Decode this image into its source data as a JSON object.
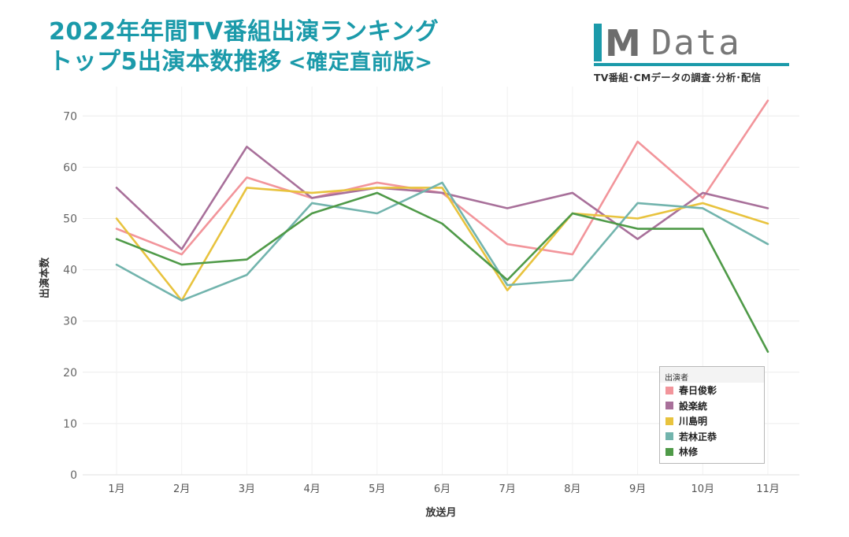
{
  "title": {
    "line1": "2022年年間TV番組出演ランキング",
    "line2": "トップ5出演本数推移",
    "line2_suffix": "<確定直前版>"
  },
  "logo": {
    "letters": "M",
    "word": "Data",
    "tagline": "TV番組･CMデータの調査･分析･配信",
    "accent_color": "#1b9aaa"
  },
  "chart_data": {
    "type": "line",
    "xlabel": "放送月",
    "ylabel": "出演本数",
    "categories": [
      "1月",
      "2月",
      "3月",
      "4月",
      "5月",
      "6月",
      "7月",
      "8月",
      "9月",
      "10月",
      "11月"
    ],
    "ylim": [
      0,
      75
    ],
    "yticks": [
      0,
      10,
      20,
      30,
      40,
      50,
      60,
      70
    ],
    "grid": true,
    "legend": {
      "title": "出演者",
      "placement": "bottom-right"
    },
    "series": [
      {
        "name": "春日俊彰",
        "color": "#f2959b",
        "values": [
          48,
          43,
          58,
          54,
          57,
          55,
          45,
          43,
          65,
          54,
          73
        ]
      },
      {
        "name": "設楽統",
        "color": "#a8709a",
        "values": [
          56,
          44,
          64,
          54,
          56,
          55,
          52,
          55,
          46,
          55,
          52
        ]
      },
      {
        "name": "川島明",
        "color": "#e8c33e",
        "values": [
          50,
          34,
          56,
          55,
          56,
          56,
          36,
          51,
          50,
          53,
          49
        ]
      },
      {
        "name": "若林正恭",
        "color": "#72b4ad",
        "values": [
          41,
          34,
          39,
          53,
          51,
          57,
          37,
          38,
          53,
          52,
          45
        ]
      },
      {
        "name": "林修",
        "color": "#4f9a48",
        "values": [
          46,
          41,
          42,
          51,
          55,
          49,
          38,
          51,
          48,
          48,
          24
        ]
      }
    ]
  }
}
